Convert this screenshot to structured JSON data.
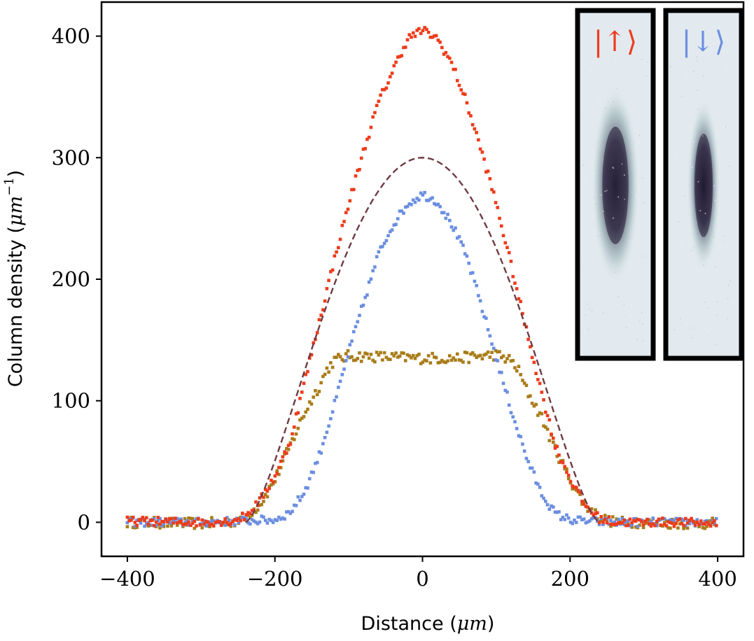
{
  "chart_data": {
    "type": "scatter",
    "title": "",
    "xlabel": {
      "prefix": "Distance (",
      "unit": "μm",
      "suffix": ")"
    },
    "ylabel": {
      "prefix": "Column density (",
      "unit": "μm",
      "sup": "−1",
      "suffix": ")"
    },
    "xlim": [
      -435,
      435
    ],
    "ylim": [
      -28,
      428
    ],
    "xticks": [
      -400,
      -200,
      0,
      200,
      400
    ],
    "xtick_labels": [
      "−400",
      "−200",
      "0",
      "200",
      "400"
    ],
    "yticks": [
      0,
      100,
      200,
      300,
      400
    ],
    "ytick_labels": [
      "0",
      "100",
      "200",
      "300",
      "400"
    ],
    "grid": false,
    "legend": "none",
    "series": [
      {
        "key": "spin-up",
        "style": "dotted",
        "color": "#ee3b1b",
        "x": [
          -400,
          -300,
          -260,
          -240,
          -220,
          -200,
          -180,
          -160,
          -140,
          -120,
          -100,
          -80,
          -60,
          -40,
          -20,
          0,
          20,
          40,
          60,
          80,
          100,
          120,
          140,
          160,
          180,
          200,
          220,
          240,
          260,
          300,
          350,
          400
        ],
        "y": [
          1,
          0,
          1,
          5,
          18,
          38,
          65,
          115,
          165,
          215,
          262,
          305,
          345,
          372,
          398,
          405,
          398,
          377,
          345,
          305,
          262,
          212,
          160,
          110,
          63,
          36,
          14,
          3,
          0,
          0,
          0,
          -1
        ]
      },
      {
        "key": "spin-down",
        "style": "dotted",
        "color": "#6b8ee0",
        "x": [
          -400,
          -300,
          -200,
          -180,
          -160,
          -140,
          -120,
          -100,
          -80,
          -60,
          -40,
          -20,
          0,
          20,
          40,
          60,
          80,
          100,
          120,
          140,
          160,
          180,
          200,
          220,
          260,
          300,
          400
        ],
        "y": [
          0,
          0,
          2,
          8,
          25,
          55,
          95,
          140,
          180,
          220,
          245,
          262,
          270,
          264,
          245,
          218,
          178,
          135,
          93,
          55,
          25,
          7,
          2,
          1,
          0,
          0,
          0
        ]
      },
      {
        "key": "difference",
        "style": "dotted",
        "color": "#a97c18",
        "x": [
          -400,
          -300,
          -260,
          -240,
          -220,
          -200,
          -180,
          -160,
          -140,
          -130,
          -120,
          -100,
          -50,
          0,
          50,
          100,
          120,
          130,
          140,
          160,
          180,
          200,
          220,
          240,
          260,
          300,
          350,
          400
        ],
        "y": [
          0,
          -1,
          0,
          4,
          15,
          35,
          62,
          90,
          112,
          125,
          133,
          137,
          136,
          135,
          135,
          138,
          133,
          125,
          110,
          88,
          60,
          35,
          14,
          4,
          0,
          0,
          -1,
          -1
        ]
      },
      {
        "key": "fit",
        "style": "dashed",
        "color": "#6e3b43",
        "shape": "thomas-fermi",
        "center": 0,
        "peak": 300,
        "radius": 240
      }
    ],
    "insets": [
      {
        "label_text": "|↑⟩",
        "color": "#ee3b1b",
        "cloud_width_scale": 1.0,
        "peak_opacity": 0.92
      },
      {
        "label_text": "|↓⟩",
        "color": "#6b8ee0",
        "cloud_width_scale": 0.7,
        "peak_opacity": 0.96
      }
    ]
  }
}
